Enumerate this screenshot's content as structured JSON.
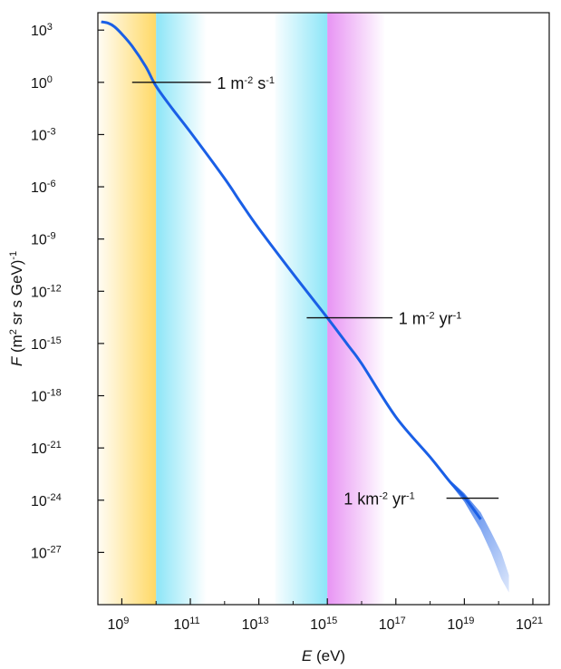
{
  "chart_data": {
    "type": "line",
    "xscale": "log",
    "yscale": "log",
    "x_tick_labels": [
      {
        "base": "10",
        "exp": "9"
      },
      {
        "base": "10",
        "exp": "11"
      },
      {
        "base": "10",
        "exp": "13"
      },
      {
        "base": "10",
        "exp": "15"
      },
      {
        "base": "10",
        "exp": "17"
      },
      {
        "base": "10",
        "exp": "19"
      },
      {
        "base": "10",
        "exp": "21"
      }
    ],
    "x_tick_values": [
      1000000000.0,
      100000000000.0,
      10000000000000.0,
      1000000000000000.0,
      1e+17,
      1e+19,
      1e+21
    ],
    "y_tick_labels": [
      {
        "base": "10",
        "exp": "3"
      },
      {
        "base": "10",
        "exp": "0"
      },
      {
        "base": "10",
        "exp": "-3"
      },
      {
        "base": "10",
        "exp": "-6"
      },
      {
        "base": "10",
        "exp": "-9"
      },
      {
        "base": "10",
        "exp": "-12"
      },
      {
        "base": "10",
        "exp": "-15"
      },
      {
        "base": "10",
        "exp": "-18"
      },
      {
        "base": "10",
        "exp": "-21"
      },
      {
        "base": "10",
        "exp": "-24"
      },
      {
        "base": "10",
        "exp": "-27"
      }
    ],
    "y_tick_values": [
      1000.0,
      1.0,
      0.001,
      1e-06,
      1e-09,
      1e-12,
      1e-15,
      1e-18,
      1e-21,
      1e-24,
      1e-27
    ],
    "xlim": [
      200000000.0,
      3e+21
    ],
    "ylim": [
      1e-30,
      10000.0
    ],
    "xlabel": {
      "var": "E",
      "unit": " (eV)"
    },
    "ylabel": {
      "var": "F",
      "unit_a": " (m",
      "sup_a": "2",
      "unit_b": " sr s GeV)",
      "sup_b": "-1"
    },
    "grid": false,
    "series": [
      {
        "color": "#1a5fe6",
        "points": [
          [
            250000000.0,
            3000.0
          ],
          [
            400000000.0,
            2500.0
          ],
          [
            600000000.0,
            1600.0
          ],
          [
            1000000000.0,
            600.0
          ],
          [
            2000000000.0,
            120.0
          ],
          [
            5000000000.0,
            8.0
          ],
          [
            10000000000.0,
            0.6
          ],
          [
            30000000000.0,
            0.03
          ],
          [
            100000000000.0,
            0.0014
          ],
          [
            1000000000000.0,
            3e-06
          ],
          [
            3000000000000.0,
            1.2e-07
          ],
          [
            10000000000000.0,
            4e-09
          ],
          [
            100000000000000.0,
            1e-11
          ],
          [
            1000000000000000.0,
            3e-14
          ],
          [
            4000000000000000.0,
            8e-16
          ],
          [
            1e+16,
            7e-17
          ],
          [
            1e+17,
            6e-20
          ],
          [
            1e+18,
            3e-22
          ],
          [
            4e+18,
            1e-23
          ],
          [
            1e+19,
            1.5e-24
          ],
          [
            3e+19,
            8e-26
          ]
        ]
      }
    ],
    "uncertainty_band": {
      "color": "#1a5fe6",
      "upper": [
        [
          4e+18,
          1.3e-23
        ],
        [
          1e+19,
          2.5e-24
        ],
        [
          3e+19,
          2e-25
        ],
        [
          6e+19,
          1.5e-26
        ],
        [
          1.2e+20,
          1e-27
        ],
        [
          2e+20,
          5e-29
        ]
      ],
      "lower": [
        [
          4e+18,
          8e-24
        ],
        [
          1e+19,
          8e-25
        ],
        [
          3e+19,
          2e-26
        ],
        [
          6e+19,
          1e-27
        ],
        [
          1.2e+20,
          3e-29
        ],
        [
          2e+20,
          5e-30
        ]
      ]
    },
    "shaded_regions": [
      {
        "x_from": 200000000.0,
        "x_to": 10000000000.0,
        "color": "#ffcc33",
        "fade": "into-right"
      },
      {
        "x_from": 10000000000.0,
        "x_to": 300000000000.0,
        "color": "#66ddf5",
        "fade": "out-right"
      },
      {
        "x_from": 30000000000000.0,
        "x_to": 1000000000000000.0,
        "color": "#66ddf5",
        "fade": "into-right"
      },
      {
        "x_from": 1000000000000000.0,
        "x_to": 5e+16,
        "color": "#e070f0",
        "fade": "out-right"
      }
    ],
    "annotations": [
      {
        "main": "1 m",
        "sup1": "-2",
        "mid": " s",
        "sup2": "-1",
        "line_x": [
          2000000000.0,
          400000000000.0
        ],
        "y": 1.0,
        "text_x": 600000000000.0
      },
      {
        "main": "1 m",
        "sup1": "-2",
        "mid": " yr",
        "sup2": "-1",
        "line_x": [
          250000000000000.0,
          8e+16
        ],
        "y": 3e-14,
        "text_x": 1.2e+17
      },
      {
        "main": "1 km",
        "sup1": "-2",
        "mid": " yr",
        "sup2": "-1",
        "line_x": [
          3e+18,
          1e+20
        ],
        "y": 1.3e-24,
        "text_x": 3000000000000000.0
      }
    ]
  }
}
